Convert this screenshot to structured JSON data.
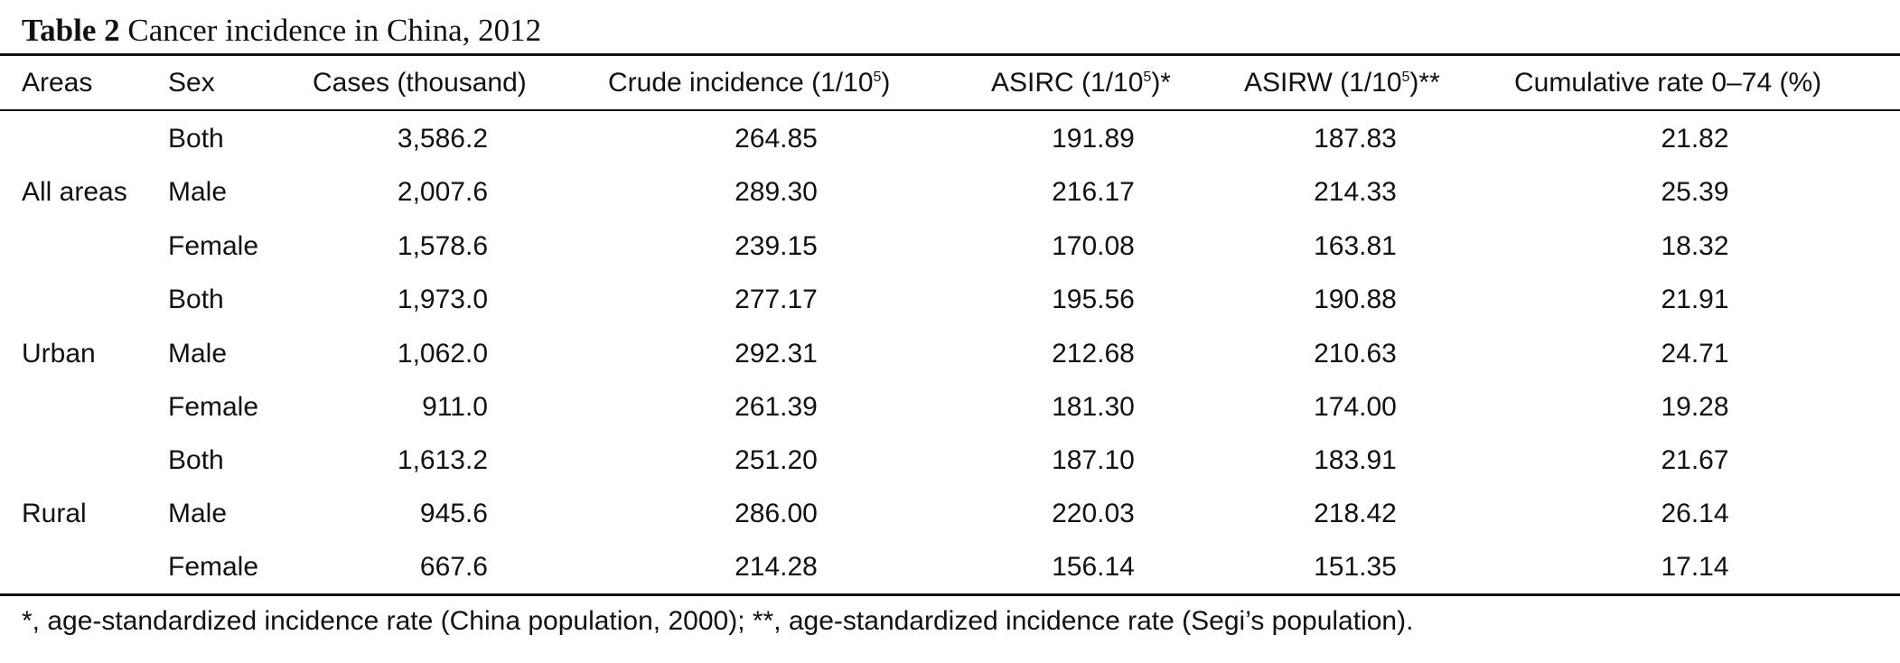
{
  "table": {
    "caption_label": "Table 2",
    "caption_text": "Cancer incidence in China, 2012",
    "headers": {
      "areas": "Areas",
      "sex": "Sex",
      "cases": "Cases (thousand)",
      "crude_text": "Crude incidence (1/10",
      "crude_sup": "5",
      "crude_tail": ")",
      "asirc_text": "ASIRC (1/10",
      "asirc_sup": "5",
      "asirc_tail": ")*",
      "asirw_text": "ASIRW (1/10",
      "asirw_sup": "5",
      "asirw_tail": ")**",
      "cumulative": "Cumulative rate 0–74 (%)"
    },
    "groups": [
      {
        "area": "All areas"
      },
      {
        "area": "Urban"
      },
      {
        "area": "Rural"
      }
    ],
    "rows": [
      {
        "sex": "Both",
        "cases": "3,586.2",
        "crude": "264.85",
        "asirc": "191.89",
        "asirw": "187.83",
        "cumulative": "21.82"
      },
      {
        "sex": "Male",
        "cases": "2,007.6",
        "crude": "289.30",
        "asirc": "216.17",
        "asirw": "214.33",
        "cumulative": "25.39"
      },
      {
        "sex": "Female",
        "cases": "1,578.6",
        "crude": "239.15",
        "asirc": "170.08",
        "asirw": "163.81",
        "cumulative": "18.32"
      },
      {
        "sex": "Both",
        "cases": "1,973.0",
        "crude": "277.17",
        "asirc": "195.56",
        "asirw": "190.88",
        "cumulative": "21.91"
      },
      {
        "sex": "Male",
        "cases": "1,062.0",
        "crude": "292.31",
        "asirc": "212.68",
        "asirw": "210.63",
        "cumulative": "24.71"
      },
      {
        "sex": "Female",
        "cases": "911.0",
        "crude": "261.39",
        "asirc": "181.30",
        "asirw": "174.00",
        "cumulative": "19.28"
      },
      {
        "sex": "Both",
        "cases": "1,613.2",
        "crude": "251.20",
        "asirc": "187.10",
        "asirw": "183.91",
        "cumulative": "21.67"
      },
      {
        "sex": "Male",
        "cases": "945.6",
        "crude": "286.00",
        "asirc": "220.03",
        "asirw": "218.42",
        "cumulative": "26.14"
      },
      {
        "sex": "Female",
        "cases": "667.6",
        "crude": "214.28",
        "asirc": "156.14",
        "asirw": "151.35",
        "cumulative": "17.14"
      }
    ],
    "footnote": "*, age-standardized incidence rate (China population, 2000); **, age-standardized incidence rate (Segi’s population)."
  }
}
